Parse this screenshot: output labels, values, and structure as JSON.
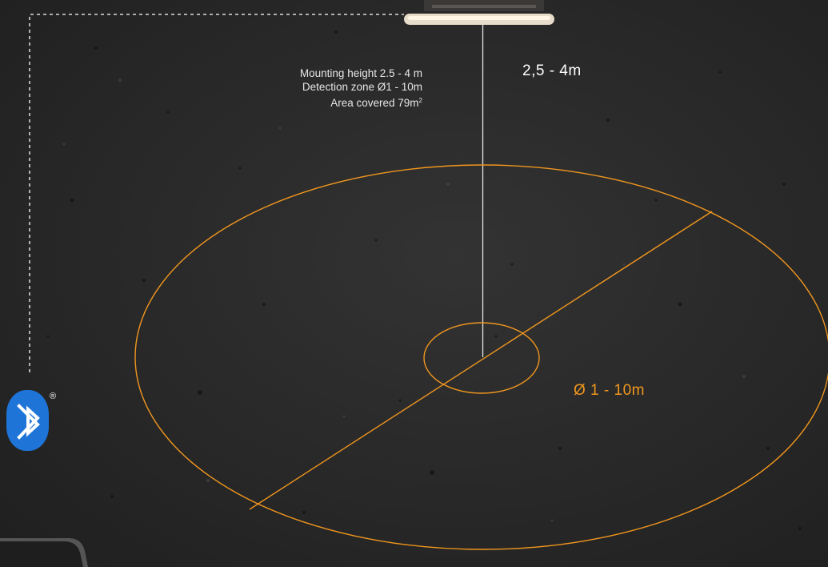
{
  "specs": {
    "mounting_height": "Mounting height 2.5 - 4 m",
    "detection_zone": "Detection zone Ø1 - 10m",
    "area_covered_prefix": "Area covered 79m",
    "area_covered_sup": "2"
  },
  "height_label": "2,5 - 4m",
  "zone_label": "Ø 1 - 10m",
  "bluetooth": {
    "icon": "bluetooth-icon",
    "registered_mark": "®",
    "color": "#1f74d8"
  },
  "colors": {
    "zone_accent": "#f0961e",
    "text_primary": "#ffffff",
    "text_secondary": "#e6e6e6"
  }
}
